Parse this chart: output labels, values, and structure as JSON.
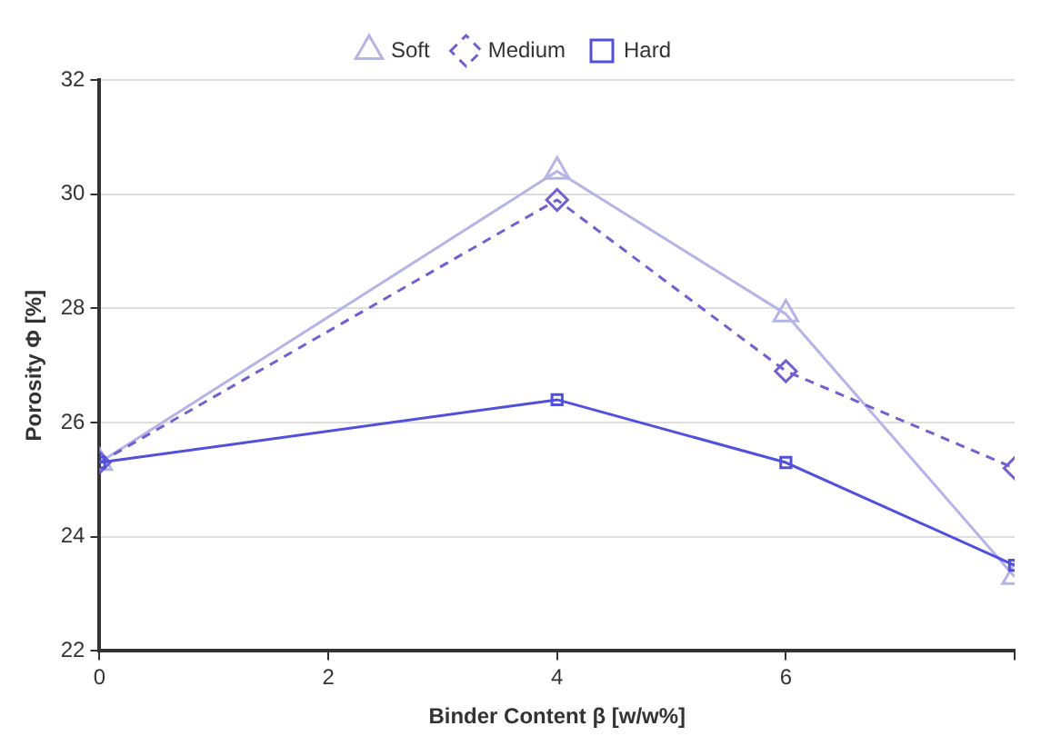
{
  "chart_data": {
    "type": "line",
    "xlabel": "Binder Content β [w/w%]",
    "ylabel": "Porosity Φ [%]",
    "x": [
      0,
      4,
      6,
      8
    ],
    "series": [
      {
        "name": "Soft",
        "color": "#b4b4e6",
        "values": [
          25.3,
          30.4,
          27.9,
          23.3
        ],
        "marker": "triangle",
        "line_style": "solid"
      },
      {
        "name": "Medium",
        "color": "#7060d0",
        "values": [
          25.3,
          29.9,
          26.9,
          25.2
        ],
        "marker": "diamond",
        "line_style": "dashed"
      },
      {
        "name": "Hard",
        "color": "#5050dc",
        "values": [
          25.3,
          26.4,
          25.3,
          23.5
        ],
        "marker": "square",
        "line_style": "solid"
      }
    ],
    "xlim": [
      0,
      8
    ],
    "xticks": [
      0,
      2,
      4,
      6,
      {
        "value": 8,
        "label": null
      }
    ],
    "ylim": [
      22,
      32
    ],
    "yticks": [
      22,
      24,
      26,
      28,
      30,
      32
    ],
    "grid": "y",
    "legend": "top"
  }
}
